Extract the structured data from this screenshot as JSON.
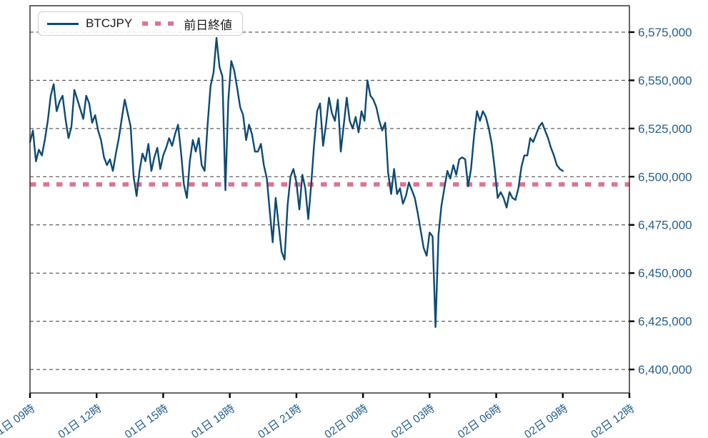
{
  "figure": {
    "background": "#ffffff"
  },
  "colors": {
    "price_line": "#0d4a73",
    "prev_close_line": "#dc7490",
    "tick_label": "#27608f",
    "grid_line": "#3a3a3a",
    "axis_border": "#262626"
  },
  "legend": {
    "items": [
      {
        "label": "BTCJPY",
        "sample": "solid-line"
      },
      {
        "label": "前日終値",
        "sample": "dotted-line"
      }
    ]
  },
  "chart_data": {
    "type": "line",
    "title": "",
    "xlabel": "",
    "ylabel": "",
    "grid": "horizontal-dashed",
    "legend_position": "upper-left",
    "x_axis": {
      "tick_labels": [
        "01日 09時",
        "01日 12時",
        "01日 15時",
        "01日 18時",
        "01日 21時",
        "02日 00時",
        "02日 03時",
        "02日 06時",
        "02日 09時",
        "02日 12時"
      ],
      "tick_interval_hours": 3,
      "span_minutes": 1620
    },
    "y_axis": {
      "tick_values": [
        6575000,
        6550000,
        6525000,
        6500000,
        6475000,
        6450000,
        6425000,
        6400000
      ],
      "tick_labels": [
        "6,575,000",
        "6,550,000",
        "6,525,000",
        "6,500,000",
        "6,475,000",
        "6,450,000",
        "6,425,000",
        "6,400,000"
      ],
      "range": [
        6387800,
        6588700
      ],
      "side": "right"
    },
    "prev_close": {
      "name": "前日終値",
      "value": 6496000,
      "style": "dotted"
    },
    "series": [
      {
        "name": "BTCJPY",
        "style": "solid",
        "start": "01日 09:00",
        "interval_minutes": 8,
        "values": [
          6518000,
          6524000,
          6508000,
          6514000,
          6511000,
          6519000,
          6529000,
          6542000,
          6548000,
          6534000,
          6539000,
          6542000,
          6530000,
          6520000,
          6526000,
          6545000,
          6540000,
          6535000,
          6530000,
          6542000,
          6538000,
          6528000,
          6532000,
          6524000,
          6519000,
          6510000,
          6506000,
          6509000,
          6503000,
          6512000,
          6520000,
          6530000,
          6540000,
          6533000,
          6526000,
          6500000,
          6490000,
          6503000,
          6512000,
          6508000,
          6517000,
          6503000,
          6510000,
          6515000,
          6504000,
          6511000,
          6515000,
          6520000,
          6516000,
          6522000,
          6527000,
          6513000,
          6496000,
          6489000,
          6508000,
          6519000,
          6513000,
          6520000,
          6506000,
          6503000,
          6527000,
          6547000,
          6554000,
          6572000,
          6557000,
          6552000,
          6493000,
          6540000,
          6560000,
          6555000,
          6546000,
          6536000,
          6532000,
          6519000,
          6527000,
          6522000,
          6513000,
          6513000,
          6517000,
          6506000,
          6499000,
          6482000,
          6466000,
          6489000,
          6475000,
          6461000,
          6457000,
          6485000,
          6500000,
          6504000,
          6497000,
          6483000,
          6501000,
          6494000,
          6478000,
          6496000,
          6517000,
          6534000,
          6538000,
          6516000,
          6527000,
          6541000,
          6533000,
          6529000,
          6540000,
          6513000,
          6527000,
          6541000,
          6529000,
          6525000,
          6531000,
          6523000,
          6534000,
          6529000,
          6550000,
          6542000,
          6540000,
          6536000,
          6529000,
          6524000,
          6528000,
          6502000,
          6491000,
          6504000,
          6491000,
          6494000,
          6486000,
          6490000,
          6497000,
          6493000,
          6489000,
          6481000,
          6472000,
          6463000,
          6459000,
          6471000,
          6469000,
          6422000,
          6470000,
          6485000,
          6494000,
          6503000,
          6499000,
          6506000,
          6501000,
          6509000,
          6510000,
          6509000,
          6495000,
          6504000,
          6521000,
          6534000,
          6529000,
          6534000,
          6531000,
          6525000,
          6517000,
          6504000,
          6489000,
          6492000,
          6489000,
          6484000,
          6492000,
          6489000,
          6488000,
          6494000,
          6505000,
          6511000,
          6511000,
          6520000,
          6518000,
          6522000,
          6526000,
          6528000,
          6524000,
          6520000,
          6515000,
          6511000,
          6506000,
          6504000,
          6503000
        ]
      }
    ]
  }
}
